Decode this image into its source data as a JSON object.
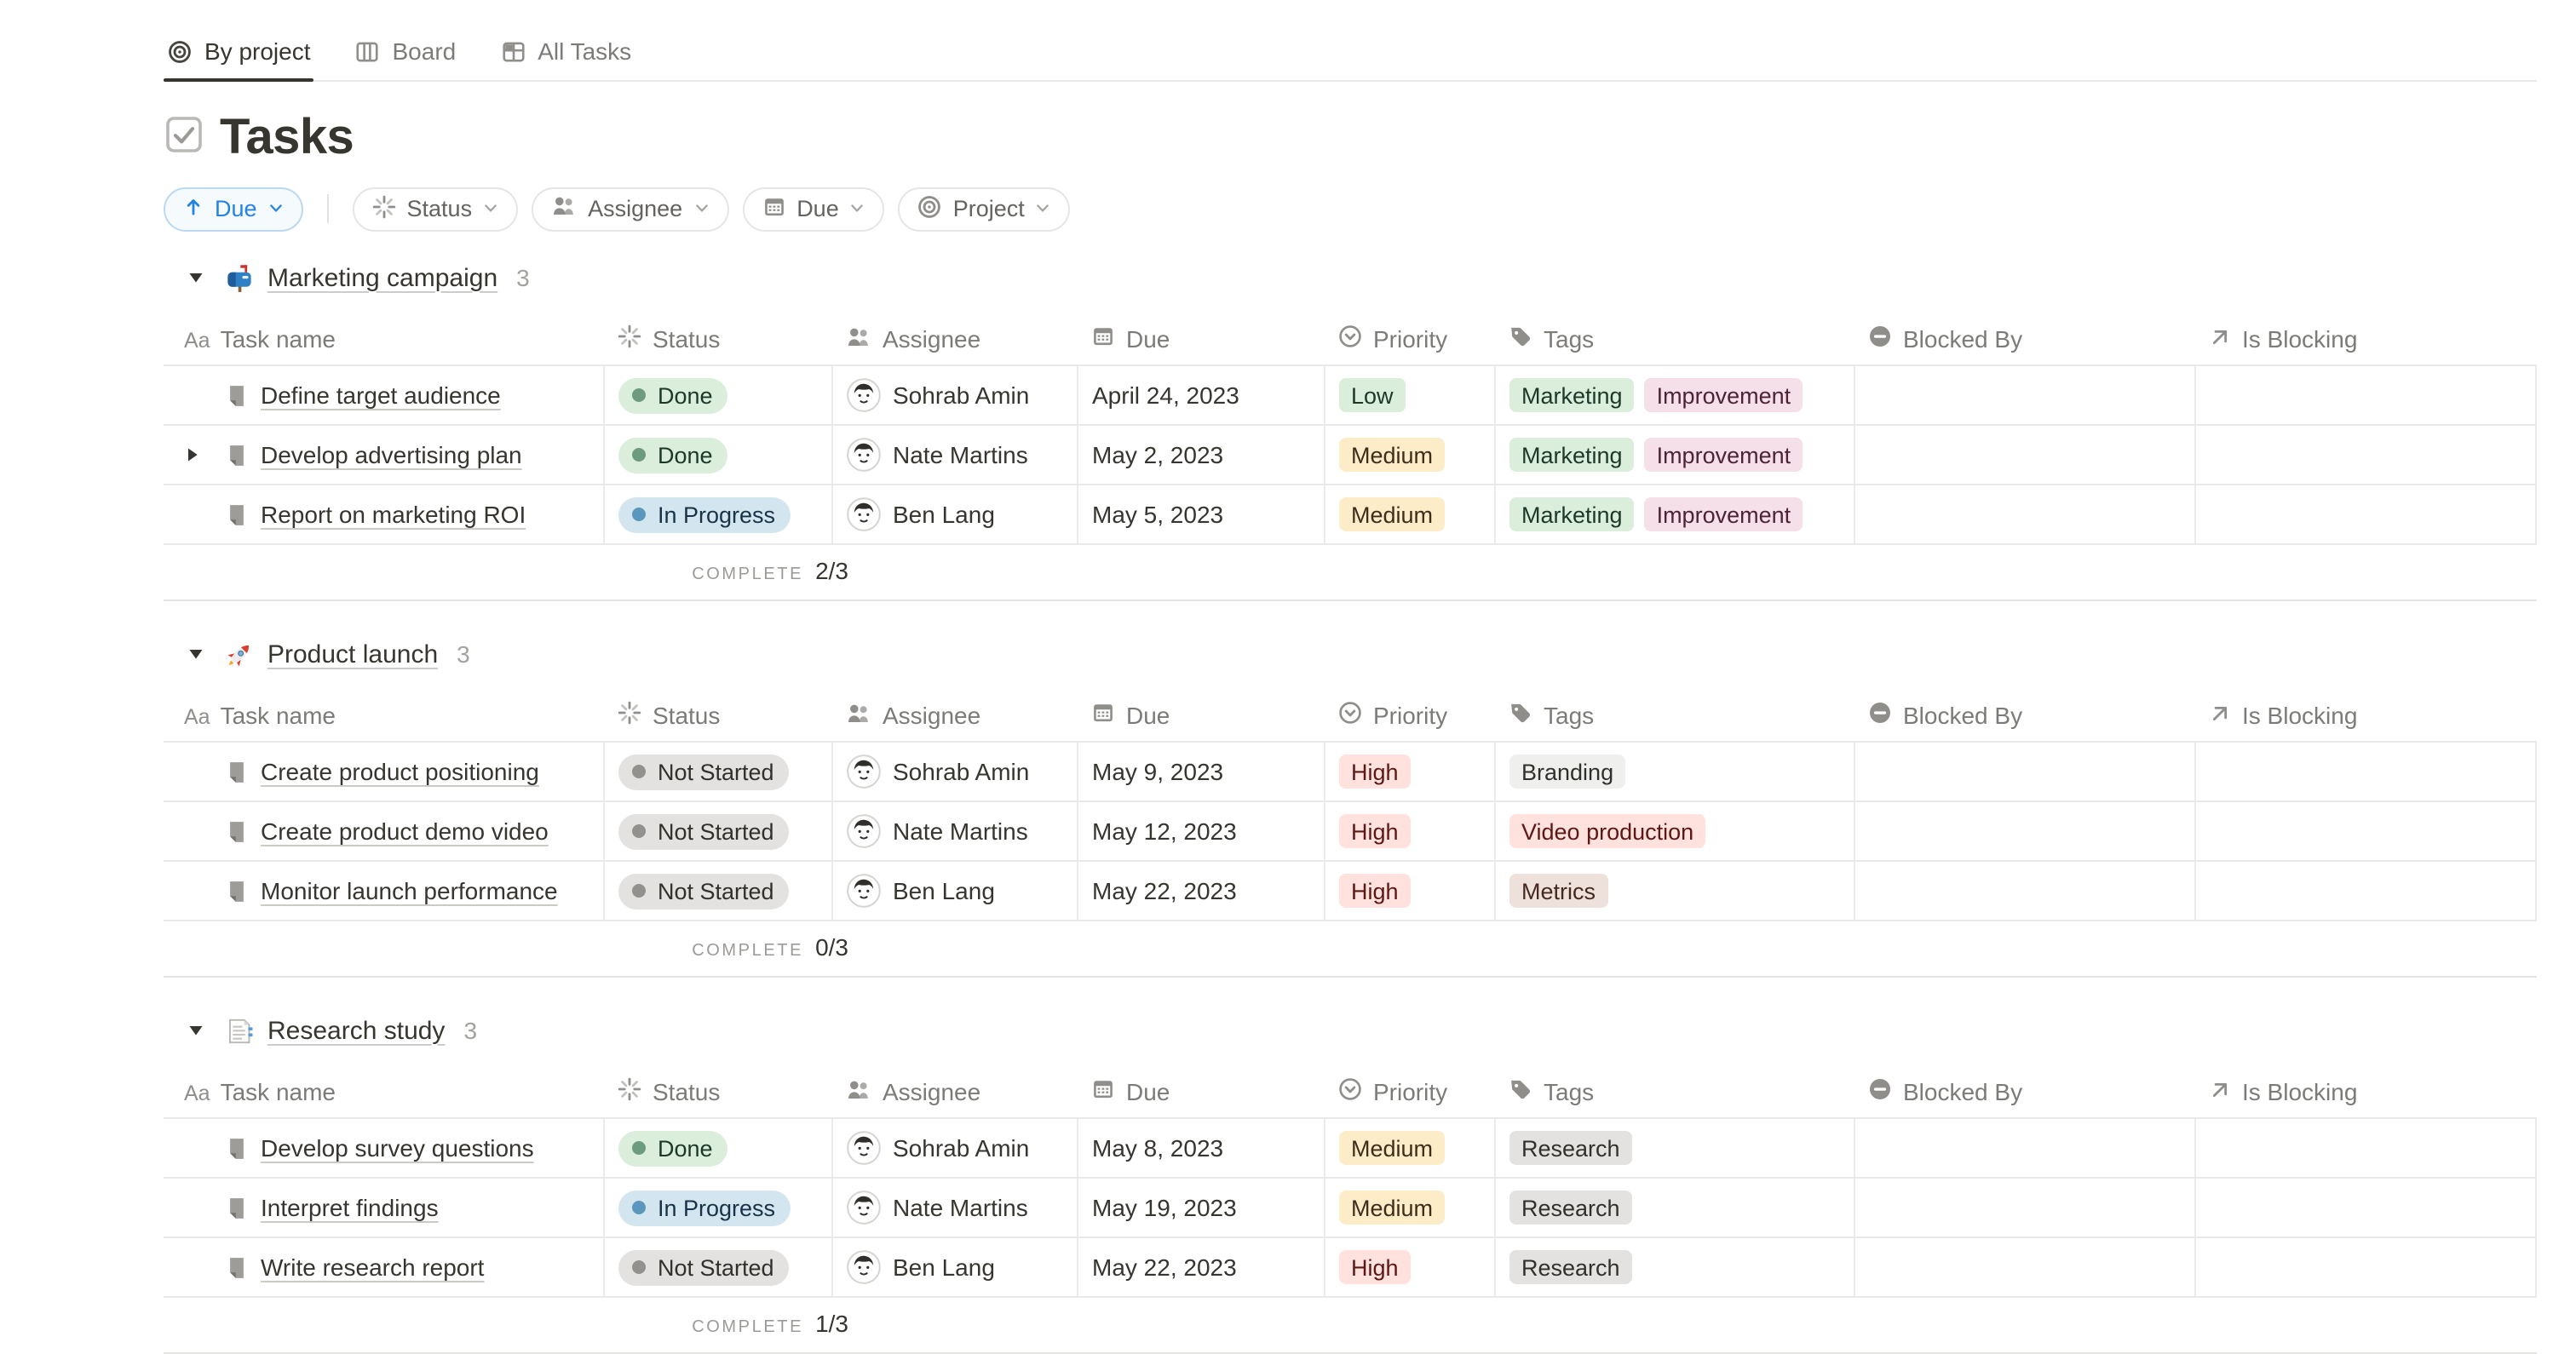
{
  "tabs": [
    {
      "label": "By project",
      "icon": "target-icon",
      "active": true
    },
    {
      "label": "Board",
      "icon": "board-icon",
      "active": false
    },
    {
      "label": "All Tasks",
      "icon": "grid-icon",
      "active": false
    }
  ],
  "page": {
    "title": "Tasks",
    "title_icon": "checkbox-icon"
  },
  "toolbar": {
    "sort_chip": {
      "label": "Due",
      "icon": "arrow-up-icon",
      "direction": "ascending"
    },
    "filters": [
      {
        "label": "Status",
        "icon": "status-spinner-icon"
      },
      {
        "label": "Assignee",
        "icon": "people-icon"
      },
      {
        "label": "Due",
        "icon": "calendar-icon"
      },
      {
        "label": "Project",
        "icon": "target-icon"
      }
    ]
  },
  "columns": [
    {
      "label": "Task name",
      "icon": "text-icon"
    },
    {
      "label": "Status",
      "icon": "status-spinner-icon"
    },
    {
      "label": "Assignee",
      "icon": "people-icon"
    },
    {
      "label": "Due",
      "icon": "calendar-icon"
    },
    {
      "label": "Priority",
      "icon": "priority-icon"
    },
    {
      "label": "Tags",
      "icon": "tag-icon"
    },
    {
      "label": "Blocked By",
      "icon": "blocked-icon"
    },
    {
      "label": "Is Blocking",
      "icon": "arrow-up-right-icon"
    }
  ],
  "complete_label": "COMPLETE",
  "groups": [
    {
      "name": "Marketing campaign",
      "emoji_icon": "mailbox-emoji",
      "count": "3",
      "complete_value": "2/3",
      "rows": [
        {
          "task": "Define target audience",
          "has_subtasks": false,
          "status": {
            "label": "Done",
            "variant": "green"
          },
          "assignee": "Sohrab Amin",
          "due": "April 24, 2023",
          "priority": {
            "label": "Low",
            "variant": "green"
          },
          "tags": [
            {
              "label": "Marketing",
              "variant": "green"
            },
            {
              "label": "Improvement",
              "variant": "pink"
            }
          ],
          "blocked_by": "",
          "is_blocking": ""
        },
        {
          "task": "Develop advertising plan",
          "has_subtasks": true,
          "status": {
            "label": "Done",
            "variant": "green"
          },
          "assignee": "Nate Martins",
          "due": "May 2, 2023",
          "priority": {
            "label": "Medium",
            "variant": "yellow"
          },
          "tags": [
            {
              "label": "Marketing",
              "variant": "green"
            },
            {
              "label": "Improvement",
              "variant": "pink"
            }
          ],
          "blocked_by": "",
          "is_blocking": ""
        },
        {
          "task": "Report on marketing ROI",
          "has_subtasks": false,
          "status": {
            "label": "In Progress",
            "variant": "blue"
          },
          "assignee": "Ben Lang",
          "due": "May 5, 2023",
          "priority": {
            "label": "Medium",
            "variant": "yellow"
          },
          "tags": [
            {
              "label": "Marketing",
              "variant": "green"
            },
            {
              "label": "Improvement",
              "variant": "pink"
            }
          ],
          "blocked_by": "",
          "is_blocking": ""
        }
      ]
    },
    {
      "name": "Product launch",
      "emoji_icon": "rocket-emoji",
      "count": "3",
      "complete_value": "0/3",
      "rows": [
        {
          "task": "Create product positioning",
          "has_subtasks": false,
          "status": {
            "label": "Not Started",
            "variant": "gray"
          },
          "assignee": "Sohrab Amin",
          "due": "May 9, 2023",
          "priority": {
            "label": "High",
            "variant": "red"
          },
          "tags": [
            {
              "label": "Branding",
              "variant": "lightgray"
            }
          ],
          "blocked_by": "",
          "is_blocking": ""
        },
        {
          "task": "Create product demo video",
          "has_subtasks": false,
          "status": {
            "label": "Not Started",
            "variant": "gray"
          },
          "assignee": "Nate Martins",
          "due": "May 12, 2023",
          "priority": {
            "label": "High",
            "variant": "red"
          },
          "tags": [
            {
              "label": "Video production",
              "variant": "red"
            }
          ],
          "blocked_by": "",
          "is_blocking": ""
        },
        {
          "task": "Monitor launch performance",
          "has_subtasks": false,
          "status": {
            "label": "Not Started",
            "variant": "gray"
          },
          "assignee": "Ben Lang",
          "due": "May 22, 2023",
          "priority": {
            "label": "High",
            "variant": "red"
          },
          "tags": [
            {
              "label": "Metrics",
              "variant": "brown"
            }
          ],
          "blocked_by": "",
          "is_blocking": ""
        }
      ]
    },
    {
      "name": "Research study",
      "emoji_icon": "bookmark-tabs-emoji",
      "count": "3",
      "complete_value": "1/3",
      "rows": [
        {
          "task": "Develop survey questions",
          "has_subtasks": false,
          "status": {
            "label": "Done",
            "variant": "green"
          },
          "assignee": "Sohrab Amin",
          "due": "May 8, 2023",
          "priority": {
            "label": "Medium",
            "variant": "yellow"
          },
          "tags": [
            {
              "label": "Research",
              "variant": "gray"
            }
          ],
          "blocked_by": "",
          "is_blocking": ""
        },
        {
          "task": "Interpret findings",
          "has_subtasks": false,
          "status": {
            "label": "In Progress",
            "variant": "blue"
          },
          "assignee": "Nate Martins",
          "due": "May 19, 2023",
          "priority": {
            "label": "Medium",
            "variant": "yellow"
          },
          "tags": [
            {
              "label": "Research",
              "variant": "gray"
            }
          ],
          "blocked_by": "",
          "is_blocking": ""
        },
        {
          "task": "Write research report",
          "has_subtasks": false,
          "status": {
            "label": "Not Started",
            "variant": "gray"
          },
          "assignee": "Ben Lang",
          "due": "May 22, 2023",
          "priority": {
            "label": "High",
            "variant": "red"
          },
          "tags": [
            {
              "label": "Research",
              "variant": "gray"
            }
          ],
          "blocked_by": "",
          "is_blocking": ""
        }
      ]
    }
  ],
  "palette": {
    "green": {
      "bg": "#DBEDDB",
      "text": "#1C3829",
      "dot": "#6C9B7D"
    },
    "blue": {
      "bg": "#D3E5EF",
      "text": "#183347",
      "dot": "#5B97BD"
    },
    "gray": {
      "bg": "#E3E2E0",
      "text": "#32302C",
      "dot": "#91918E"
    },
    "yellow": {
      "bg": "#FDECC8",
      "text": "#402C1B"
    },
    "red": {
      "bg": "#FFE2DD",
      "text": "#5D1715"
    },
    "pink": {
      "bg": "#F5E0E9",
      "text": "#4C2337"
    },
    "lightgray": {
      "bg": "#EFEFED",
      "text": "#32302C"
    },
    "brown": {
      "bg": "#EEE0DA",
      "text": "#442A1E"
    },
    "accent_blue": "#2383E2"
  }
}
